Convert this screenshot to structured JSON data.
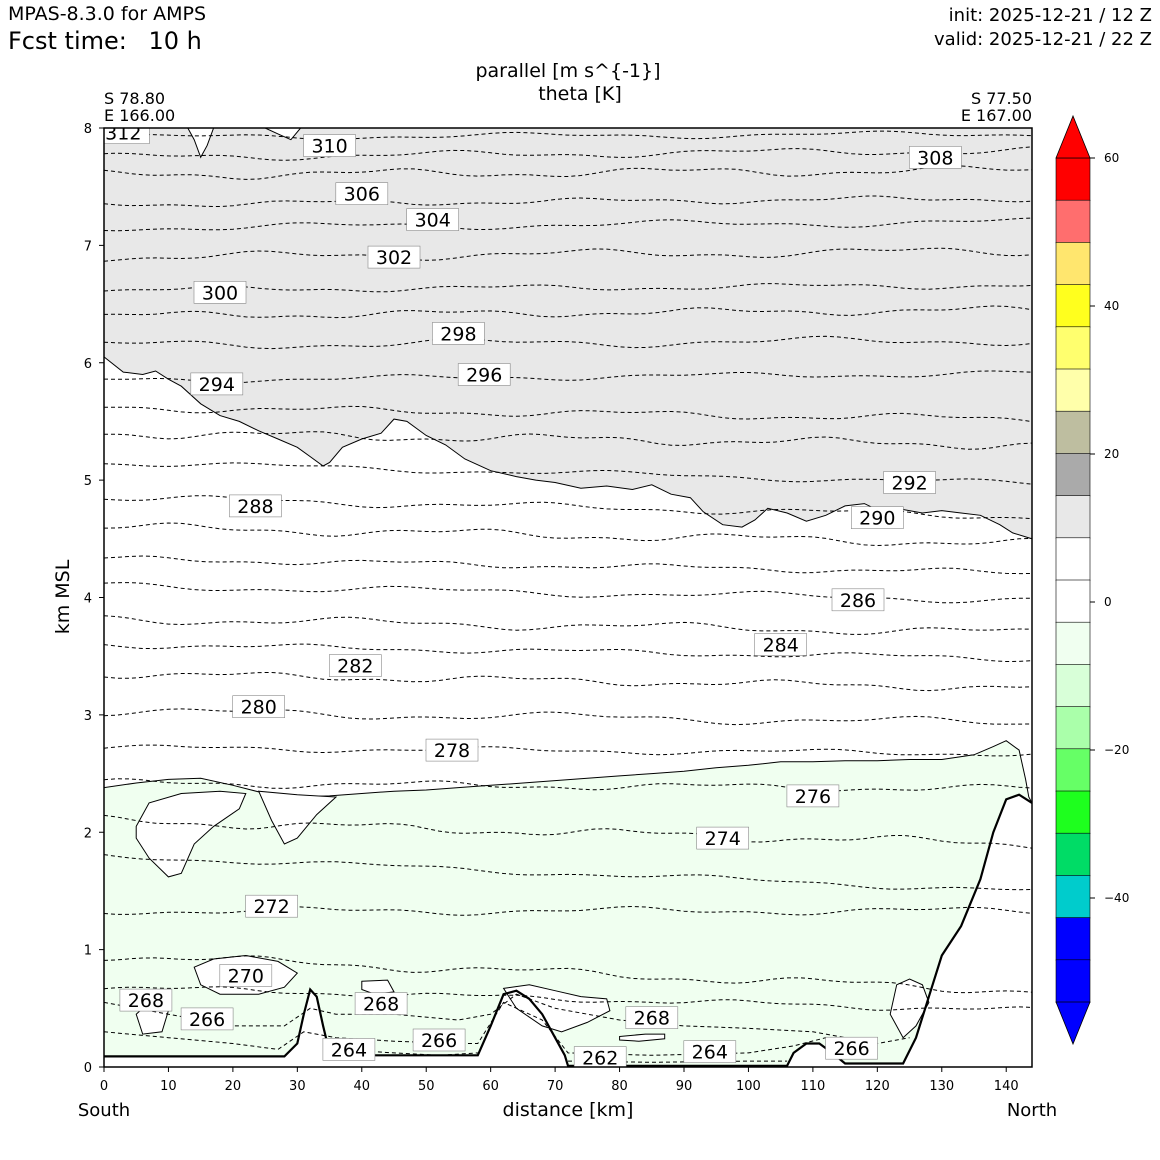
{
  "header": {
    "model": "MPAS-8.3.0 for AMPS",
    "fcst_label": "Fcst time:",
    "fcst_value": "10 h",
    "init": "init: 2025-12-21 / 12 Z",
    "valid": "valid: 2025-12-21 / 22 Z"
  },
  "chart_data": {
    "type": "cross-section",
    "title_line1": "parallel [m s^{-1}]",
    "title_line2": "theta [K]",
    "start_point": {
      "lat": "S 78.80",
      "lon": "E 166.00"
    },
    "end_point": {
      "lat": "S 77.50",
      "lon": "E 167.00"
    },
    "xlabel": "distance [km]",
    "ylabel": "km MSL",
    "x_end_left": "South",
    "x_end_right": "North",
    "xlim": [
      0,
      144
    ],
    "ylim": [
      0,
      8
    ],
    "xticks": [
      0,
      10,
      20,
      30,
      40,
      50,
      60,
      70,
      80,
      90,
      100,
      110,
      120,
      130,
      140
    ],
    "yticks": [
      0,
      1,
      2,
      3,
      4,
      5,
      6,
      7,
      8
    ],
    "colorbar": {
      "ticks": [
        60,
        40,
        20,
        0,
        -20,
        -40
      ],
      "levels": [
        60,
        55,
        50,
        45,
        40,
        35,
        30,
        25,
        20,
        15,
        10,
        5,
        0,
        -5,
        -10,
        -15,
        -20,
        -25,
        -30,
        -35,
        -40,
        -45,
        -50,
        -55
      ],
      "colors": [
        "#ff0000",
        "#ff6e6e",
        "#ffe66e",
        "#ffff1e",
        "#ffff6e",
        "#ffffaa",
        "#bebea0",
        "#aaaaaa",
        "#e8e8e8",
        "#ffffff",
        "#ffffff",
        "#f0fff0",
        "#d8ffd8",
        "#aaffaa",
        "#66ff66",
        "#1eff1e",
        "#00dc66",
        "#00cccc",
        "#0000ff",
        "#0000ff"
      ],
      "extend_top": "#ff0000",
      "extend_bottom": "#0000ff"
    },
    "wind_regions": [
      {
        "name": "upper-positive-wind",
        "color": "#e8e8e8",
        "range": "5 to 10"
      },
      {
        "name": "lower-negative-wind",
        "color": "#f0fff0",
        "range": "-5 to -10"
      }
    ],
    "theta_labels": [
      {
        "text": "312",
        "x": 3,
        "y": 7.96
      },
      {
        "text": "310",
        "x": 35,
        "y": 7.85
      },
      {
        "text": "308",
        "x": 129,
        "y": 7.75
      },
      {
        "text": "306",
        "x": 40,
        "y": 7.44
      },
      {
        "text": "304",
        "x": 51,
        "y": 7.22
      },
      {
        "text": "302",
        "x": 45,
        "y": 6.9
      },
      {
        "text": "300",
        "x": 18,
        "y": 6.6
      },
      {
        "text": "298",
        "x": 55,
        "y": 6.25
      },
      {
        "text": "296",
        "x": 59,
        "y": 5.9
      },
      {
        "text": "294",
        "x": 17.5,
        "y": 5.82
      },
      {
        "text": "292",
        "x": 125,
        "y": 4.98
      },
      {
        "text": "290",
        "x": 120,
        "y": 4.68
      },
      {
        "text": "288",
        "x": 23.5,
        "y": 4.78
      },
      {
        "text": "286",
        "x": 117,
        "y": 3.98
      },
      {
        "text": "284",
        "x": 105,
        "y": 3.6
      },
      {
        "text": "282",
        "x": 39,
        "y": 3.42
      },
      {
        "text": "280",
        "x": 24,
        "y": 3.07
      },
      {
        "text": "278",
        "x": 54,
        "y": 2.7
      },
      {
        "text": "276",
        "x": 110,
        "y": 2.31
      },
      {
        "text": "274",
        "x": 96,
        "y": 1.95
      },
      {
        "text": "272",
        "x": 26,
        "y": 1.37
      },
      {
        "text": "270",
        "x": 22,
        "y": 0.78
      },
      {
        "text": "268",
        "x": 6.5,
        "y": 0.57
      },
      {
        "text": "266",
        "x": 16,
        "y": 0.41
      },
      {
        "text": "268",
        "x": 43,
        "y": 0.54
      },
      {
        "text": "268",
        "x": 85,
        "y": 0.42
      },
      {
        "text": "266",
        "x": 52,
        "y": 0.23
      },
      {
        "text": "264",
        "x": 38,
        "y": 0.15
      },
      {
        "text": "262",
        "x": 77,
        "y": 0.08
      },
      {
        "text": "264",
        "x": 94,
        "y": 0.13
      },
      {
        "text": "266",
        "x": 116,
        "y": 0.16
      }
    ],
    "terrain": [
      [
        0,
        0.09
      ],
      [
        28,
        0.09
      ],
      [
        30,
        0.2
      ],
      [
        31,
        0.45
      ],
      [
        32,
        0.66
      ],
      [
        33,
        0.6
      ],
      [
        34,
        0.35
      ],
      [
        35,
        0.12
      ],
      [
        36,
        0.1
      ],
      [
        58,
        0.1
      ],
      [
        60,
        0.35
      ],
      [
        62,
        0.62
      ],
      [
        64,
        0.65
      ],
      [
        66,
        0.58
      ],
      [
        68,
        0.45
      ],
      [
        70,
        0.25
      ],
      [
        71.5,
        0.1
      ],
      [
        72,
        0.01
      ],
      [
        106,
        0.01
      ],
      [
        107,
        0.12
      ],
      [
        109,
        0.2
      ],
      [
        111,
        0.2
      ],
      [
        113,
        0.12
      ],
      [
        115,
        0.03
      ],
      [
        124,
        0.03
      ],
      [
        126,
        0.25
      ],
      [
        128,
        0.6
      ],
      [
        130,
        0.95
      ],
      [
        133,
        1.2
      ],
      [
        136,
        1.6
      ],
      [
        138,
        2.0
      ],
      [
        140,
        2.28
      ],
      [
        142,
        2.32
      ],
      [
        144,
        2.25
      ]
    ]
  }
}
